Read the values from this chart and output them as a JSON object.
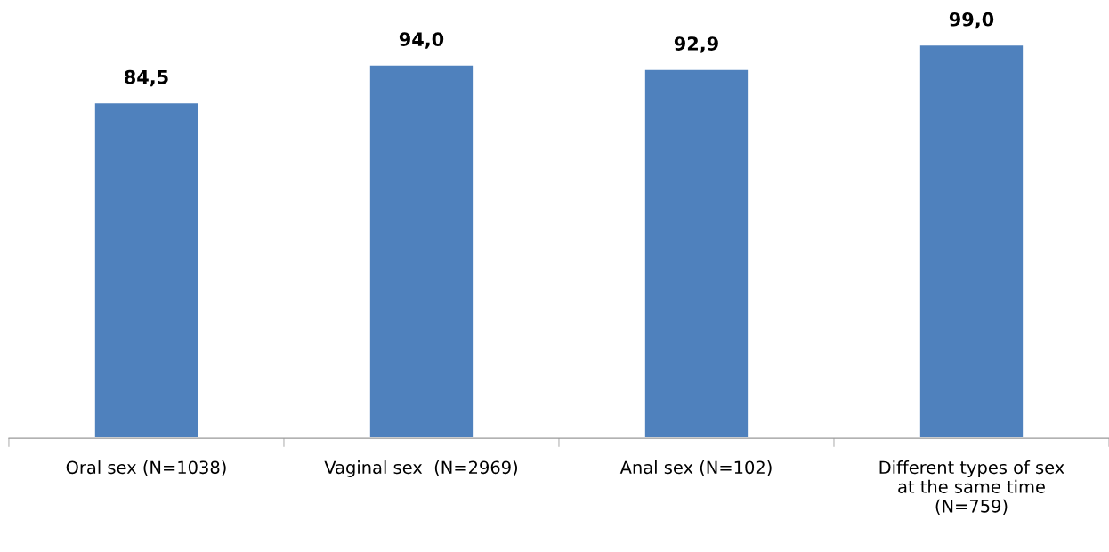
{
  "chart_data": {
    "type": "bar",
    "categories": [
      "Oral sex (N=1038)",
      "Vaginal sex  (N=2969)",
      "Anal sex (N=102)",
      "Different types of sex\nat the same time\n(N=759)"
    ],
    "values": [
      84.5,
      94.0,
      92.9,
      99.0
    ],
    "value_labels": [
      "84,5",
      "94,0",
      "92,9",
      "99,0"
    ],
    "color": "#4f81bd",
    "grid": false,
    "legend": false
  }
}
